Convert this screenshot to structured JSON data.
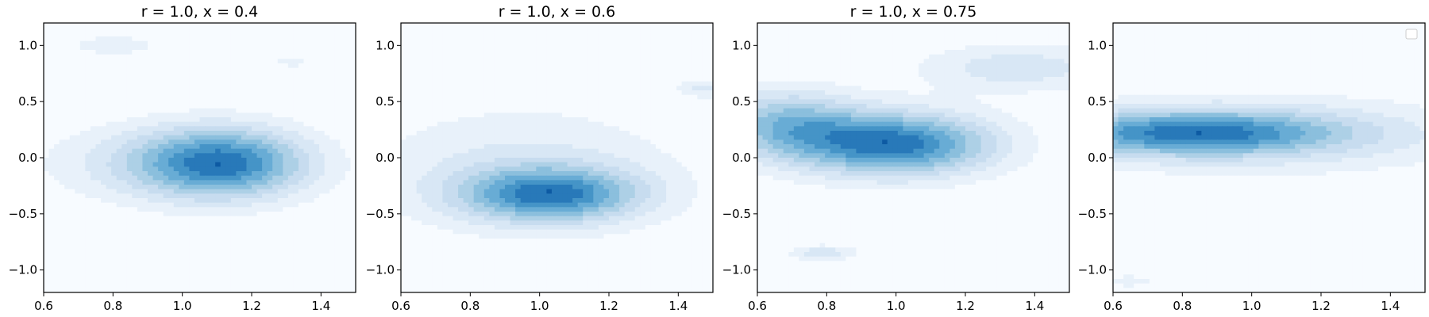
{
  "chart_data": [
    {
      "type": "contour",
      "title": "r = 1.0, x = 0.4",
      "xlim": [
        0.6,
        1.5
      ],
      "ylim": [
        -1.2,
        1.2
      ],
      "xticks": [
        "0.6",
        "0.8",
        "1.0",
        "1.2",
        "1.4"
      ],
      "yticks": [
        "1.0",
        "0.5",
        "0.0",
        "−0.5",
        "−1.0"
      ],
      "colormap": "Blues",
      "levels": 9,
      "peaks": [
        {
          "x": 1.12,
          "y": -0.05,
          "sx": 0.17,
          "sy": 0.22,
          "amp": 1.0
        },
        {
          "x": 0.95,
          "y": -0.05,
          "sx": 0.25,
          "sy": 0.25,
          "amp": 0.35
        },
        {
          "x": 0.8,
          "y": 1.0,
          "sx": 0.15,
          "sy": 0.1,
          "amp": 0.18
        },
        {
          "x": 1.32,
          "y": 0.85,
          "sx": 0.12,
          "sy": 0.1,
          "amp": 0.15
        }
      ]
    },
    {
      "type": "contour",
      "title": "r = 1.0, x = 0.6",
      "xlim": [
        0.6,
        1.5
      ],
      "ylim": [
        -1.2,
        1.2
      ],
      "xticks": [
        "0.6",
        "0.8",
        "1.0",
        "1.2",
        "1.4"
      ],
      "yticks": [
        "1.0",
        "0.5",
        "0.0",
        "−0.5",
        "−1.0"
      ],
      "colormap": "Blues",
      "levels": 9,
      "peaks": [
        {
          "x": 1.03,
          "y": -0.33,
          "sx": 0.18,
          "sy": 0.17,
          "amp": 1.0
        },
        {
          "x": 0.95,
          "y": -0.1,
          "sx": 0.32,
          "sy": 0.4,
          "amp": 0.3
        },
        {
          "x": 1.48,
          "y": 0.62,
          "sx": 0.06,
          "sy": 0.06,
          "amp": 0.3
        }
      ]
    },
    {
      "type": "contour",
      "title": "r = 1.0, x = 0.75",
      "xlim": [
        0.6,
        1.5
      ],
      "ylim": [
        -1.2,
        1.2
      ],
      "xticks": [
        "0.6",
        "0.8",
        "1.0",
        "1.2",
        "1.4"
      ],
      "yticks": [
        "1.0",
        "0.5",
        "0.0",
        "−0.5",
        "−1.0"
      ],
      "colormap": "Blues",
      "levels": 9,
      "peaks": [
        {
          "x": 1.0,
          "y": 0.12,
          "sx": 0.2,
          "sy": 0.2,
          "amp": 0.95
        },
        {
          "x": 0.68,
          "y": 0.3,
          "sx": 0.15,
          "sy": 0.22,
          "amp": 0.55
        },
        {
          "x": 1.35,
          "y": 0.8,
          "sx": 0.2,
          "sy": 0.15,
          "amp": 0.3
        },
        {
          "x": 0.79,
          "y": -0.85,
          "sx": 0.07,
          "sy": 0.05,
          "amp": 0.3
        }
      ]
    },
    {
      "type": "contour",
      "title": "",
      "xlim": [
        0.6,
        1.5
      ],
      "ylim": [
        -1.2,
        1.2
      ],
      "xticks": [
        "0.6",
        "0.8",
        "1.0",
        "1.2",
        "1.4"
      ],
      "yticks": [
        "1.0",
        "0.5",
        "0.0",
        "−0.5",
        "−1.0"
      ],
      "colormap": "Blues",
      "levels": 9,
      "legend": "top-right (empty)",
      "peaks": [
        {
          "x": 0.82,
          "y": 0.22,
          "sx": 0.3,
          "sy": 0.14,
          "amp": 1.0
        },
        {
          "x": 1.05,
          "y": 0.2,
          "sx": 0.45,
          "sy": 0.25,
          "amp": 0.35
        },
        {
          "x": 0.65,
          "y": -1.1,
          "sx": 0.05,
          "sy": 0.04,
          "amp": 0.25
        }
      ]
    }
  ]
}
